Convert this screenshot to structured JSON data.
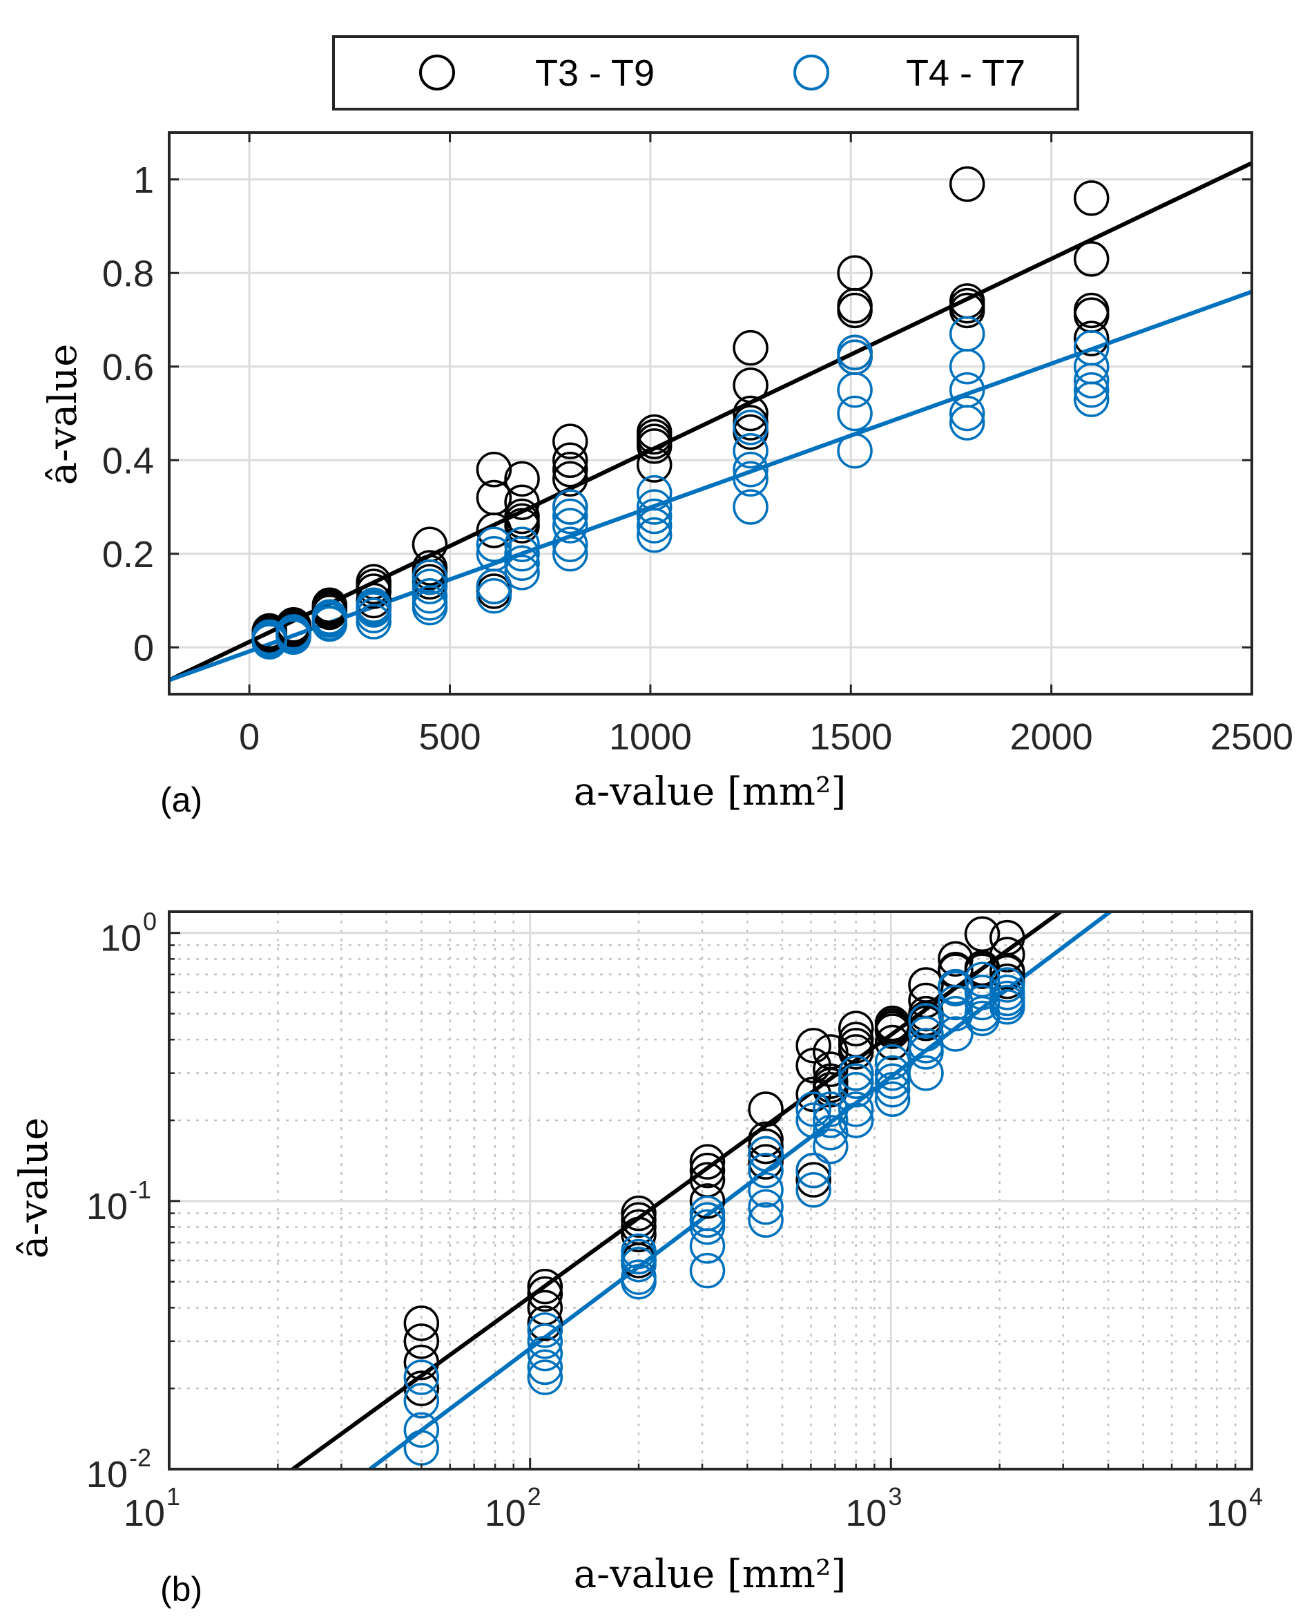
{
  "colors": {
    "t3_t9": "#000000",
    "t4_t7": "#0072BD"
  },
  "legend": {
    "entries": [
      {
        "label": "T3 - T9",
        "color": "#000000",
        "marker": "circle-open"
      },
      {
        "label": "T4 - T7",
        "color": "#0072BD",
        "marker": "circle-open"
      }
    ]
  },
  "chart_data": [
    {
      "panel_label": "(a)",
      "type": "scatter",
      "xscale": "linear",
      "yscale": "linear",
      "xlabel": "a-value [mm²]",
      "ylabel": "â-value",
      "xlim": [
        -200,
        2500
      ],
      "ylim": [
        -0.1,
        1.1
      ],
      "xticks": [
        0,
        500,
        1000,
        1500,
        2000,
        2500
      ],
      "yticks": [
        0,
        0.2,
        0.4,
        0.6,
        0.8,
        1
      ],
      "xtick_labels": [
        "0",
        "500",
        "1000",
        "1500",
        "2000",
        "2500"
      ],
      "ytick_labels": [
        "0",
        "0.2",
        "0.4",
        "0.6",
        "0.8",
        "1"
      ],
      "grid": true,
      "series": [
        {
          "name": "T3 - T9",
          "color": "#000000",
          "points": [
            [
              50,
              0.035
            ],
            [
              50,
              0.03
            ],
            [
              50,
              0.025
            ],
            [
              50,
              0.02
            ],
            [
              110,
              0.048
            ],
            [
              110,
              0.045
            ],
            [
              110,
              0.04
            ],
            [
              110,
              0.035
            ],
            [
              200,
              0.09
            ],
            [
              200,
              0.085
            ],
            [
              200,
              0.08
            ],
            [
              200,
              0.075
            ],
            [
              200,
              0.06
            ],
            [
              310,
              0.14
            ],
            [
              310,
              0.13
            ],
            [
              310,
              0.12
            ],
            [
              310,
              0.1
            ],
            [
              310,
              0.085
            ],
            [
              450,
              0.22
            ],
            [
              450,
              0.17
            ],
            [
              450,
              0.16
            ],
            [
              450,
              0.15
            ],
            [
              450,
              0.14
            ],
            [
              610,
              0.38
            ],
            [
              610,
              0.32
            ],
            [
              610,
              0.25
            ],
            [
              610,
              0.13
            ],
            [
              610,
              0.12
            ],
            [
              680,
              0.36
            ],
            [
              680,
              0.31
            ],
            [
              680,
              0.28
            ],
            [
              680,
              0.27
            ],
            [
              680,
              0.26
            ],
            [
              800,
              0.44
            ],
            [
              800,
              0.4
            ],
            [
              800,
              0.38
            ],
            [
              800,
              0.36
            ],
            [
              800,
              0.3
            ],
            [
              1010,
              0.46
            ],
            [
              1010,
              0.45
            ],
            [
              1010,
              0.44
            ],
            [
              1010,
              0.43
            ],
            [
              1010,
              0.39
            ],
            [
              1250,
              0.64
            ],
            [
              1250,
              0.56
            ],
            [
              1250,
              0.5
            ],
            [
              1250,
              0.48
            ],
            [
              1250,
              0.46
            ],
            [
              1510,
              0.8
            ],
            [
              1510,
              0.73
            ],
            [
              1510,
              0.72
            ],
            [
              1510,
              0.63
            ],
            [
              1510,
              0.62
            ],
            [
              1790,
              0.99
            ],
            [
              1790,
              0.74
            ],
            [
              1790,
              0.73
            ],
            [
              1790,
              0.72
            ],
            [
              2100,
              0.96
            ],
            [
              2100,
              0.83
            ],
            [
              2100,
              0.72
            ],
            [
              2100,
              0.71
            ],
            [
              2100,
              0.66
            ]
          ],
          "fit_line": [
            [
              -200,
              -0.07
            ],
            [
              2500,
              1.035
            ]
          ]
        },
        {
          "name": "T4 - T7",
          "color": "#0072BD",
          "points": [
            [
              50,
              0.022
            ],
            [
              50,
              0.018
            ],
            [
              50,
              0.014
            ],
            [
              50,
              0.012
            ],
            [
              110,
              0.033
            ],
            [
              110,
              0.03
            ],
            [
              110,
              0.027
            ],
            [
              110,
              0.024
            ],
            [
              110,
              0.022
            ],
            [
              200,
              0.065
            ],
            [
              200,
              0.062
            ],
            [
              200,
              0.058
            ],
            [
              200,
              0.052
            ],
            [
              200,
              0.05
            ],
            [
              310,
              0.09
            ],
            [
              310,
              0.085
            ],
            [
              310,
              0.08
            ],
            [
              310,
              0.068
            ],
            [
              310,
              0.055
            ],
            [
              450,
              0.15
            ],
            [
              450,
              0.13
            ],
            [
              450,
              0.11
            ],
            [
              450,
              0.095
            ],
            [
              450,
              0.085
            ],
            [
              610,
              0.22
            ],
            [
              610,
              0.2
            ],
            [
              610,
              0.13
            ],
            [
              610,
              0.11
            ],
            [
              680,
              0.22
            ],
            [
              680,
              0.2
            ],
            [
              680,
              0.18
            ],
            [
              680,
              0.16
            ],
            [
              800,
              0.3
            ],
            [
              800,
              0.28
            ],
            [
              800,
              0.26
            ],
            [
              800,
              0.22
            ],
            [
              800,
              0.2
            ],
            [
              1010,
              0.33
            ],
            [
              1010,
              0.3
            ],
            [
              1010,
              0.28
            ],
            [
              1010,
              0.26
            ],
            [
              1010,
              0.24
            ],
            [
              1250,
              0.47
            ],
            [
              1250,
              0.42
            ],
            [
              1250,
              0.38
            ],
            [
              1250,
              0.36
            ],
            [
              1250,
              0.3
            ],
            [
              1510,
              0.63
            ],
            [
              1510,
              0.62
            ],
            [
              1510,
              0.55
            ],
            [
              1510,
              0.5
            ],
            [
              1510,
              0.42
            ],
            [
              1790,
              0.67
            ],
            [
              1790,
              0.6
            ],
            [
              1790,
              0.55
            ],
            [
              1790,
              0.5
            ],
            [
              1790,
              0.48
            ],
            [
              2100,
              0.64
            ],
            [
              2100,
              0.6
            ],
            [
              2100,
              0.57
            ],
            [
              2100,
              0.55
            ],
            [
              2100,
              0.53
            ]
          ],
          "fit_line": [
            [
              -200,
              -0.07
            ],
            [
              2500,
              0.76
            ]
          ]
        }
      ]
    },
    {
      "panel_label": "(b)",
      "type": "scatter",
      "xscale": "log",
      "yscale": "log",
      "xlabel": "a-value [mm²]",
      "ylabel": "â-value",
      "xlim": [
        10,
        10000
      ],
      "ylim": [
        0.01,
        1.2
      ],
      "xticks": [
        10,
        100,
        1000,
        10000
      ],
      "yticks": [
        0.01,
        0.1,
        1
      ],
      "xtick_labels": [
        {
          "base": "10",
          "exp": "1"
        },
        {
          "base": "10",
          "exp": "2"
        },
        {
          "base": "10",
          "exp": "3"
        },
        {
          "base": "10",
          "exp": "4"
        }
      ],
      "ytick_labels": [
        {
          "base": "10",
          "exp": "-2"
        },
        {
          "base": "10",
          "exp": "-1"
        },
        {
          "base": "10",
          "exp": "0"
        }
      ],
      "grid": true,
      "minor_grid": true,
      "series_ref": "same data as panel (a)",
      "fit_lines": {
        "T3 - T9": [
          [
            22,
            0.01
          ],
          [
            2950,
            1.2
          ]
        ],
        "T4 - T7": [
          [
            36,
            0.01
          ],
          [
            4050,
            1.2
          ]
        ]
      }
    }
  ]
}
